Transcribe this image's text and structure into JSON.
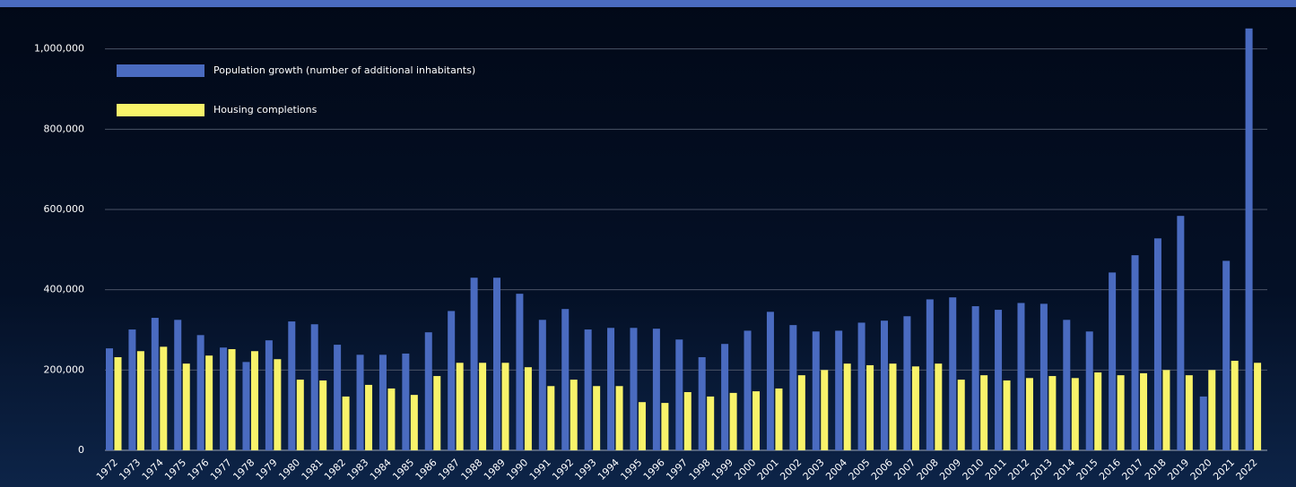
{
  "chart_data": {
    "type": "bar",
    "categories": [
      "1972",
      "1973",
      "1974",
      "1975",
      "1976",
      "1977",
      "1978",
      "1979",
      "1980",
      "1981",
      "1982",
      "1983",
      "1984",
      "1985",
      "1986",
      "1987",
      "1988",
      "1989",
      "1990",
      "1991",
      "1992",
      "1993",
      "1994",
      "1995",
      "1996",
      "1997",
      "1998",
      "1999",
      "2000",
      "2001",
      "2002",
      "2003",
      "2004",
      "2005",
      "2006",
      "2007",
      "2008",
      "2009",
      "2010",
      "2011",
      "2012",
      "2013",
      "2014",
      "2015",
      "2016",
      "2017",
      "2018",
      "2019",
      "2020",
      "2021",
      "2022"
    ],
    "series": [
      {
        "name": "Population growth (number of additional inhabitants)",
        "color": "#4a6bc0",
        "values": [
          254000,
          301000,
          330000,
          325000,
          287000,
          256000,
          220000,
          274000,
          321000,
          314000,
          263000,
          238000,
          238000,
          241000,
          294000,
          347000,
          430000,
          430000,
          390000,
          325000,
          352000,
          301000,
          305000,
          305000,
          303000,
          276000,
          232000,
          265000,
          298000,
          345000,
          312000,
          296000,
          298000,
          318000,
          323000,
          334000,
          376000,
          381000,
          359000,
          350000,
          367000,
          365000,
          325000,
          296000,
          443000,
          486000,
          528000,
          584000,
          134000,
          472000,
          1051000
        ]
      },
      {
        "name": "Housing completions",
        "color": "#f8f36a",
        "values": [
          232000,
          247000,
          258000,
          216000,
          236000,
          252000,
          247000,
          227000,
          176000,
          174000,
          134000,
          163000,
          154000,
          138000,
          185000,
          218000,
          218000,
          218000,
          207000,
          160000,
          176000,
          160000,
          160000,
          120000,
          118000,
          145000,
          134000,
          143000,
          147000,
          154000,
          187000,
          200000,
          216000,
          212000,
          216000,
          209000,
          216000,
          176000,
          187000,
          174000,
          180000,
          185000,
          180000,
          194000,
          187000,
          192000,
          200000,
          187000,
          200000,
          223000,
          218000
        ]
      }
    ],
    "ylim": [
      0,
      1055000
    ],
    "yticks": [
      0,
      {
        "value": 200000,
        "label": "200,000"
      },
      {
        "value": 400000,
        "label": "400,000"
      },
      {
        "value": 600000,
        "label": "600,000"
      },
      {
        "value": 800000,
        "label": "800,000"
      },
      {
        "value": 1000000,
        "label": "1,000,000"
      }
    ],
    "grid": true
  }
}
